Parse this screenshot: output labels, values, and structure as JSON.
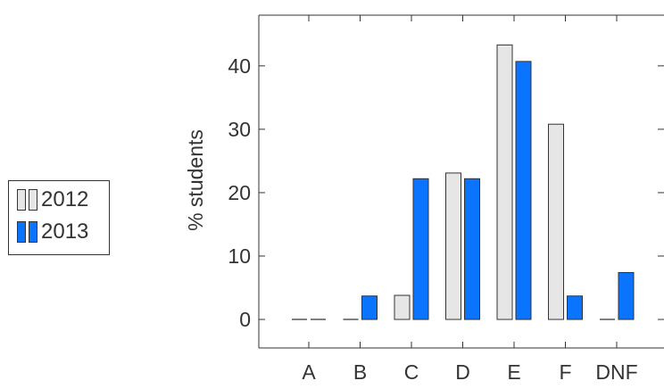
{
  "chart_data": {
    "type": "bar",
    "categories": [
      "A",
      "B",
      "C",
      "D",
      "E",
      "F",
      "DNF"
    ],
    "series": [
      {
        "name": "2012",
        "values": [
          0,
          0,
          3.8,
          23.1,
          43.3,
          30.8,
          0
        ],
        "color": "#e6e6e6"
      },
      {
        "name": "2013",
        "values": [
          0,
          3.7,
          22.2,
          22.2,
          40.7,
          3.7,
          7.4
        ],
        "color": "#0a74ff"
      }
    ],
    "xlabel": "",
    "ylabel": "% students",
    "ylim": [
      -4.5,
      48
    ],
    "yticks": [
      0,
      10,
      20,
      30,
      40
    ],
    "grid": false,
    "legend_position": "left"
  }
}
